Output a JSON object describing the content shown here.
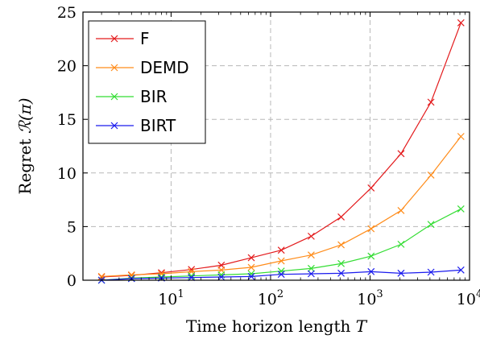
{
  "chart_data": {
    "type": "line",
    "xscale": "log",
    "xlabel_text": "Time horizon length ",
    "xlabel_var": "T",
    "ylabel_text": "Regret ",
    "ylabel_var": "ℛ(π)",
    "xlim": [
      1.3,
      10000
    ],
    "ylim": [
      0,
      25
    ],
    "xticks": [
      {
        "value": 10,
        "base": "10",
        "exp": "1"
      },
      {
        "value": 100,
        "base": "10",
        "exp": "2"
      },
      {
        "value": 1000,
        "base": "10",
        "exp": "3"
      },
      {
        "value": 10000,
        "base": "10",
        "exp": "4"
      }
    ],
    "yticks": [
      {
        "value": 0,
        "label": "0"
      },
      {
        "value": 5,
        "label": "5"
      },
      {
        "value": 10,
        "label": "10"
      },
      {
        "value": 15,
        "label": "15"
      },
      {
        "value": 20,
        "label": "20"
      },
      {
        "value": 25,
        "label": "25"
      }
    ],
    "grid": true,
    "legend_position": "top-left",
    "x": [
      2,
      4,
      8,
      16,
      32,
      64,
      128,
      256,
      512,
      1024,
      2048,
      4096,
      8192
    ],
    "series": [
      {
        "name": "F",
        "color": "#e31a1c",
        "values": [
          0.3,
          0.45,
          0.7,
          1.0,
          1.4,
          2.1,
          2.8,
          4.1,
          5.9,
          8.6,
          11.8,
          16.6,
          24.0
        ]
      },
      {
        "name": "DEMD",
        "color": "#ff8c1a",
        "values": [
          0.35,
          0.5,
          0.6,
          0.8,
          0.95,
          1.2,
          1.8,
          2.35,
          3.3,
          4.8,
          6.5,
          9.8,
          13.4
        ]
      },
      {
        "name": "BIR",
        "color": "#33dd33",
        "values": [
          0.0,
          0.2,
          0.3,
          0.4,
          0.5,
          0.6,
          0.85,
          1.1,
          1.55,
          2.25,
          3.35,
          5.2,
          6.65
        ]
      },
      {
        "name": "BIRT",
        "color": "#1a1aee",
        "values": [
          0.0,
          0.15,
          0.2,
          0.25,
          0.3,
          0.35,
          0.55,
          0.6,
          0.65,
          0.8,
          0.65,
          0.75,
          0.95
        ]
      }
    ]
  }
}
